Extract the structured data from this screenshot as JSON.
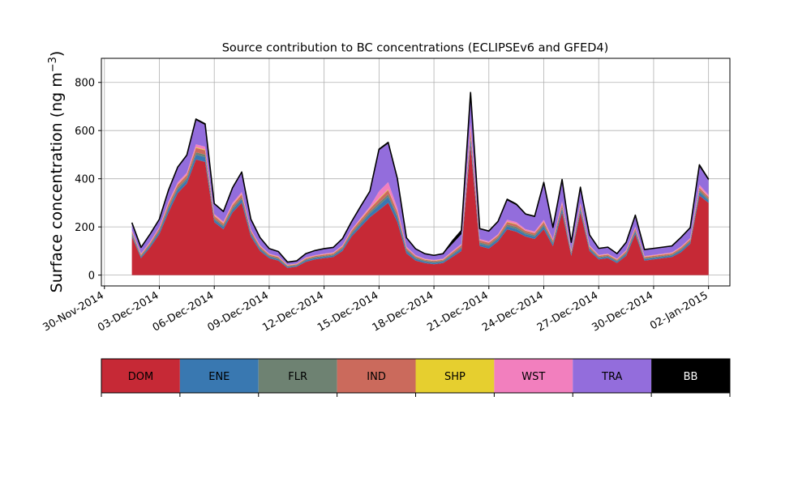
{
  "chart_data": {
    "type": "area",
    "stacked": true,
    "title": "Source contribution to BC concentrations (ECLIPSEv6 and GFED4)",
    "ylabel_main": "Surface concentration (ng m",
    "ylabel_sup": "−3",
    "ylabel_close": ")",
    "xlabel": "",
    "xaxis_type": "date",
    "xlim": [
      "2014-11-29T20:00",
      "2015-01-03T04:00"
    ],
    "ylim": [
      -45,
      900
    ],
    "yticks": [
      0,
      200,
      400,
      600,
      800
    ],
    "xtick_dates": [
      "2014-11-30",
      "2014-12-03",
      "2014-12-06",
      "2014-12-09",
      "2014-12-12",
      "2014-12-15",
      "2014-12-18",
      "2014-12-21",
      "2014-12-24",
      "2014-12-27",
      "2014-12-30",
      "2015-01-02"
    ],
    "xtick_labels": [
      "30-Nov-2014",
      "03-Dec-2014",
      "06-Dec-2014",
      "09-Dec-2014",
      "12-Dec-2014",
      "15-Dec-2014",
      "18-Dec-2014",
      "21-Dec-2014",
      "24-Dec-2014",
      "27-Dec-2014",
      "30-Dec-2014",
      "02-Jan-2015"
    ],
    "grid": true,
    "legend": {
      "placement": "below",
      "entries": [
        {
          "name": "DOM",
          "color": "#c62936",
          "text_color": "#000000"
        },
        {
          "name": "ENE",
          "color": "#3978b1",
          "text_color": "#000000"
        },
        {
          "name": "FLR",
          "color": "#6e8272",
          "text_color": "#000000"
        },
        {
          "name": "IND",
          "color": "#cb6a5c",
          "text_color": "#000000"
        },
        {
          "name": "SHP",
          "color": "#e6cf2f",
          "text_color": "#000000"
        },
        {
          "name": "WST",
          "color": "#f27fbe",
          "text_color": "#000000"
        },
        {
          "name": "TRA",
          "color": "#936ddc",
          "text_color": "#000000"
        },
        {
          "name": "BB",
          "color": "#000000",
          "text_color": "#ffffff"
        }
      ]
    },
    "x": [
      "2014-12-01T12:00",
      "2014-12-02T00:00",
      "2014-12-02T12:00",
      "2014-12-03T00:00",
      "2014-12-03T12:00",
      "2014-12-04T00:00",
      "2014-12-04T12:00",
      "2014-12-05T00:00",
      "2014-12-05T12:00",
      "2014-12-06T00:00",
      "2014-12-06T12:00",
      "2014-12-07T00:00",
      "2014-12-07T12:00",
      "2014-12-08T00:00",
      "2014-12-08T12:00",
      "2014-12-09T00:00",
      "2014-12-09T12:00",
      "2014-12-10T00:00",
      "2014-12-10T12:00",
      "2014-12-11T00:00",
      "2014-12-11T12:00",
      "2014-12-12T00:00",
      "2014-12-12T12:00",
      "2014-12-13T00:00",
      "2014-12-13T12:00",
      "2014-12-14T00:00",
      "2014-12-14T12:00",
      "2014-12-15T00:00",
      "2014-12-15T12:00",
      "2014-12-16T00:00",
      "2014-12-16T12:00",
      "2014-12-17T00:00",
      "2014-12-17T12:00",
      "2014-12-18T00:00",
      "2014-12-18T12:00",
      "2014-12-19T00:00",
      "2014-12-19T12:00",
      "2014-12-20T00:00",
      "2014-12-20T12:00",
      "2014-12-21T00:00",
      "2014-12-21T12:00",
      "2014-12-22T00:00",
      "2014-12-22T12:00",
      "2014-12-23T00:00",
      "2014-12-23T12:00",
      "2014-12-24T00:00",
      "2014-12-24T12:00",
      "2014-12-25T00:00",
      "2014-12-25T12:00",
      "2014-12-26T00:00",
      "2014-12-26T12:00",
      "2014-12-27T00:00",
      "2014-12-27T12:00",
      "2014-12-28T00:00",
      "2014-12-28T12:00",
      "2014-12-29T00:00",
      "2014-12-29T12:00",
      "2014-12-30T00:00",
      "2014-12-30T12:00",
      "2014-12-31T00:00",
      "2014-12-31T12:00",
      "2015-01-01T00:00",
      "2015-01-01T12:00",
      "2015-01-02T00:00"
    ],
    "series": [
      {
        "name": "DOM",
        "color": "#c62936",
        "values": [
          160,
          70,
          115,
          170,
          260,
          340,
          380,
          480,
          470,
          220,
          190,
          260,
          300,
          160,
          100,
          70,
          60,
          30,
          35,
          55,
          65,
          70,
          75,
          100,
          160,
          200,
          240,
          270,
          300,
          220,
          90,
          60,
          50,
          45,
          50,
          75,
          100,
          540,
          120,
          110,
          140,
          190,
          180,
          160,
          150,
          190,
          120,
          260,
          80,
          260,
          100,
          65,
          70,
          50,
          80,
          170,
          60,
          65,
          70,
          75,
          95,
          130,
          330,
          300
        ]
      },
      {
        "name": "ENE",
        "color": "#3978b1",
        "values": [
          8,
          6,
          8,
          10,
          15,
          15,
          15,
          20,
          20,
          10,
          10,
          12,
          15,
          10,
          8,
          6,
          6,
          4,
          4,
          6,
          6,
          6,
          6,
          8,
          10,
          12,
          15,
          20,
          25,
          20,
          10,
          8,
          6,
          6,
          6,
          8,
          10,
          25,
          10,
          10,
          10,
          12,
          12,
          10,
          10,
          12,
          10,
          15,
          8,
          12,
          8,
          6,
          6,
          6,
          8,
          10,
          6,
          6,
          6,
          6,
          8,
          8,
          15,
          10
        ]
      },
      {
        "name": "FLR",
        "color": "#6e8272",
        "values": [
          5,
          4,
          5,
          6,
          8,
          8,
          8,
          10,
          10,
          6,
          6,
          8,
          8,
          6,
          5,
          4,
          4,
          3,
          3,
          4,
          4,
          4,
          4,
          5,
          6,
          8,
          8,
          10,
          10,
          8,
          6,
          5,
          4,
          4,
          4,
          5,
          6,
          10,
          6,
          6,
          6,
          8,
          8,
          6,
          6,
          8,
          6,
          8,
          5,
          8,
          5,
          4,
          4,
          4,
          5,
          6,
          4,
          4,
          4,
          4,
          5,
          5,
          8,
          6
        ]
      },
      {
        "name": "IND",
        "color": "#cb6a5c",
        "values": [
          8,
          5,
          6,
          8,
          12,
          12,
          12,
          18,
          18,
          10,
          8,
          10,
          12,
          8,
          6,
          5,
          5,
          3,
          3,
          4,
          4,
          5,
          5,
          6,
          8,
          10,
          12,
          15,
          18,
          14,
          6,
          5,
          4,
          4,
          4,
          6,
          8,
          25,
          8,
          8,
          8,
          10,
          10,
          8,
          8,
          10,
          8,
          12,
          6,
          10,
          6,
          5,
          5,
          4,
          6,
          8,
          5,
          5,
          5,
          5,
          6,
          6,
          10,
          8
        ]
      },
      {
        "name": "SHP",
        "color": "#e6cf2f",
        "values": [
          1,
          1,
          1,
          1,
          2,
          2,
          2,
          3,
          3,
          2,
          2,
          2,
          2,
          1,
          1,
          1,
          1,
          1,
          1,
          1,
          1,
          1,
          1,
          1,
          1,
          2,
          2,
          3,
          3,
          2,
          1,
          1,
          1,
          1,
          1,
          1,
          1,
          3,
          1,
          1,
          1,
          2,
          2,
          1,
          1,
          2,
          1,
          2,
          1,
          2,
          1,
          1,
          1,
          1,
          1,
          1,
          1,
          1,
          1,
          1,
          1,
          1,
          2,
          1
        ]
      },
      {
        "name": "WST",
        "color": "#f27fbe",
        "values": [
          4,
          3,
          4,
          5,
          8,
          8,
          8,
          12,
          12,
          6,
          6,
          8,
          8,
          5,
          4,
          3,
          3,
          2,
          2,
          3,
          3,
          3,
          3,
          4,
          5,
          6,
          8,
          30,
          30,
          15,
          5,
          4,
          3,
          3,
          3,
          4,
          5,
          30,
          5,
          5,
          5,
          8,
          8,
          6,
          6,
          8,
          5,
          10,
          4,
          8,
          4,
          3,
          3,
          3,
          4,
          6,
          3,
          3,
          3,
          3,
          4,
          4,
          10,
          8
        ]
      },
      {
        "name": "TRA",
        "color": "#936ddc",
        "values": [
          30,
          25,
          30,
          30,
          45,
          60,
          70,
          100,
          90,
          40,
          40,
          60,
          80,
          40,
          30,
          20,
          18,
          10,
          10,
          15,
          18,
          20,
          20,
          25,
          30,
          45,
          60,
          170,
          160,
          120,
          35,
          25,
          20,
          18,
          20,
          30,
          40,
          110,
          40,
          40,
          50,
          80,
          70,
          60,
          60,
          150,
          45,
          85,
          30,
          60,
          40,
          25,
          25,
          20,
          30,
          45,
          25,
          25,
          25,
          25,
          35,
          40,
          75,
          60
        ]
      },
      {
        "name": "BB",
        "color": "#000000",
        "values": [
          2,
          1,
          2,
          2,
          3,
          3,
          3,
          5,
          5,
          3,
          2,
          3,
          3,
          2,
          2,
          1,
          1,
          1,
          1,
          1,
          1,
          1,
          1,
          2,
          2,
          3,
          3,
          5,
          5,
          3,
          2,
          1,
          1,
          1,
          1,
          12,
          15,
          15,
          3,
          3,
          3,
          5,
          5,
          3,
          3,
          5,
          3,
          5,
          2,
          5,
          3,
          2,
          2,
          1,
          2,
          3,
          2,
          2,
          2,
          2,
          3,
          3,
          8,
          5
        ]
      }
    ]
  }
}
